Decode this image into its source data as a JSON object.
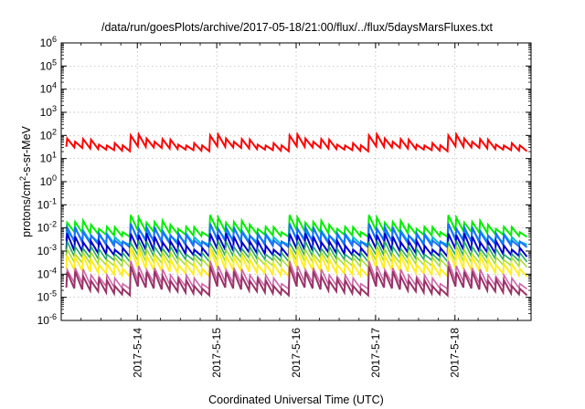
{
  "chart_data": {
    "type": "line",
    "title": "/data/run/goesPlots/archive/2017-05-18/21:00/flux/../flux/5daysMarsFluxes.txt",
    "xlabel": "Coordinated Universal Time (UTC)",
    "ylabel": "protons/cm2-s-sr-MeV",
    "yscale": "log",
    "ylim": [
      1e-06,
      1000000.0
    ],
    "xlim": [
      "2017-05-13 01:00",
      "2017-05-18 23:00"
    ],
    "x_ticks": [
      "2017-5-14",
      "2017-5-15",
      "2017-5-16",
      "2017-5-17",
      "2017-5-18"
    ],
    "y_ticks": [
      {
        "base": "10",
        "exp": "6"
      },
      {
        "base": "10",
        "exp": "5"
      },
      {
        "base": "10",
        "exp": "4"
      },
      {
        "base": "10",
        "exp": "3"
      },
      {
        "base": "10",
        "exp": "2"
      },
      {
        "base": "10",
        "exp": "1"
      },
      {
        "base": "10",
        "exp": "0"
      },
      {
        "base": "10",
        "exp": "-1"
      },
      {
        "base": "10",
        "exp": "-2"
      },
      {
        "base": "10",
        "exp": "-3"
      },
      {
        "base": "10",
        "exp": "-4"
      },
      {
        "base": "10",
        "exp": "-5"
      },
      {
        "base": "10",
        "exp": "-6"
      }
    ],
    "grid": true,
    "legend": "none",
    "cycle_starts": [
      "2017-05-13 22:00",
      "2017-05-14 22:00",
      "2017-05-15 22:00",
      "2017-05-16 22:00",
      "2017-05-17 22:00"
    ],
    "series": [
      {
        "color": "#ff0000",
        "high": 100,
        "low": 14,
        "teeth": 10,
        "lw": 2
      },
      {
        "color": "#00ee00",
        "high": 0.03,
        "low": 0.0025,
        "teeth": 10,
        "lw": 2
      },
      {
        "color": "#00bbcc",
        "high": 0.012,
        "low": 0.0012,
        "teeth": 10,
        "lw": 2
      },
      {
        "color": "#1a6fff",
        "high": 0.015,
        "low": 0.0008,
        "teeth": 10,
        "lw": 2
      },
      {
        "color": "#0000cc",
        "high": 0.007,
        "low": 0.0003,
        "teeth": 10,
        "lw": 2
      },
      {
        "color": "#22aa66",
        "high": 0.003,
        "low": 0.0002,
        "teeth": 10,
        "lw": 1.6
      },
      {
        "color": "#aadd33",
        "high": 0.0016,
        "low": 0.00012,
        "teeth": 10,
        "lw": 1.6
      },
      {
        "color": "#ffee22",
        "high": 0.0012,
        "low": 4e-05,
        "teeth": 10,
        "lw": 2
      },
      {
        "color": "#cc66aa",
        "high": 0.0003,
        "low": 1.2e-05,
        "teeth": 10,
        "lw": 1.6
      },
      {
        "color": "#993366",
        "high": 0.0002,
        "low": 6e-06,
        "teeth": 10,
        "lw": 2
      }
    ]
  }
}
